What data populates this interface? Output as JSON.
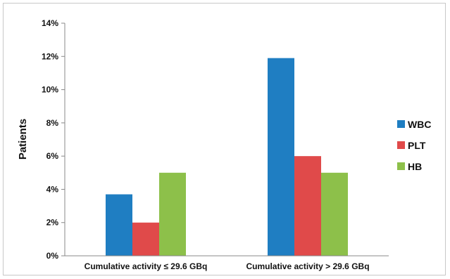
{
  "chart_data": {
    "type": "bar",
    "title": "",
    "xlabel": "",
    "ylabel": "Patients",
    "ylim": [
      0,
      14
    ],
    "y_ticks": [
      "0%",
      "2%",
      "4%",
      "6%",
      "8%",
      "10%",
      "12%",
      "14%"
    ],
    "y_tick_values": [
      0,
      2,
      4,
      6,
      8,
      10,
      12,
      14
    ],
    "categories": [
      "Cumulative activity  ≤ 29.6 GBq",
      "Cumulative activity > 29.6 GBq"
    ],
    "series": [
      {
        "name": "WBC",
        "color": "#1f7ec2",
        "values": [
          3.7,
          11.9
        ]
      },
      {
        "name": "PLT",
        "color": "#e04a4a",
        "values": [
          2.0,
          6.0
        ]
      },
      {
        "name": "HB",
        "color": "#8dc04a",
        "values": [
          5.0,
          5.0
        ]
      }
    ],
    "grid": false,
    "legend_position": "right"
  }
}
